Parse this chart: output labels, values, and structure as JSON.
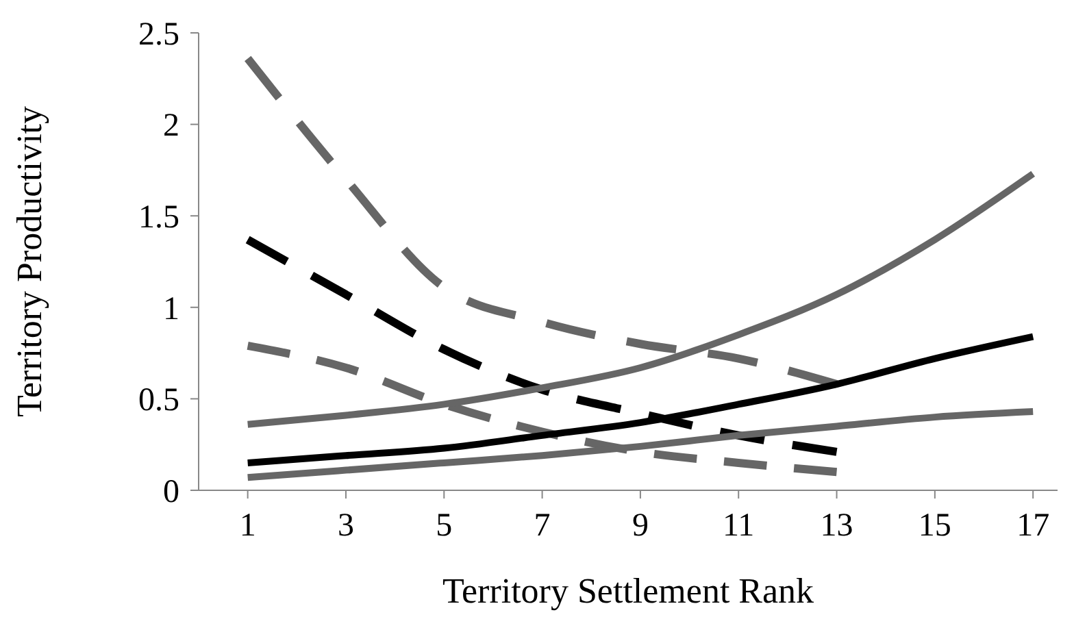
{
  "chart_data": {
    "type": "line",
    "xlabel": "Territory Settlement Rank",
    "ylabel": "Territory Productivity",
    "xlim": [
      0,
      17.5
    ],
    "xticks": [
      1,
      3,
      5,
      7,
      9,
      11,
      13,
      15,
      17
    ],
    "ylim": [
      0,
      2.5
    ],
    "yticks": [
      0,
      0.5,
      1,
      1.5,
      2,
      2.5
    ],
    "grid": false,
    "marker": "none",
    "series": [
      {
        "color": "#666666",
        "line_style": "dashed",
        "x": [
          1,
          3,
          5,
          7,
          9,
          11,
          13
        ],
        "values": [
          2.36,
          1.7,
          1.11,
          0.92,
          0.8,
          0.72,
          0.58
        ]
      },
      {
        "color": "#000000",
        "line_style": "dashed",
        "x": [
          1,
          3,
          5,
          7,
          9,
          11,
          13
        ],
        "values": [
          1.37,
          1.07,
          0.77,
          0.55,
          0.42,
          0.3,
          0.21
        ]
      },
      {
        "color": "#666666",
        "line_style": "dashed",
        "x": [
          1,
          3,
          5,
          7,
          9,
          11,
          13
        ],
        "values": [
          0.79,
          0.67,
          0.47,
          0.32,
          0.21,
          0.15,
          0.1
        ]
      },
      {
        "color": "#666666",
        "line_style": "solid",
        "x": [
          1,
          3,
          5,
          7,
          9,
          11,
          13,
          15,
          17
        ],
        "values": [
          0.36,
          0.41,
          0.47,
          0.56,
          0.67,
          0.85,
          1.07,
          1.37,
          1.73
        ]
      },
      {
        "color": "#000000",
        "line_style": "solid",
        "x": [
          1,
          3,
          5,
          7,
          9,
          11,
          13,
          15,
          17
        ],
        "values": [
          0.15,
          0.19,
          0.23,
          0.3,
          0.37,
          0.47,
          0.58,
          0.72,
          0.84
        ]
      },
      {
        "color": "#666666",
        "line_style": "solid",
        "x": [
          1,
          3,
          5,
          7,
          9,
          11,
          13,
          15,
          17
        ],
        "values": [
          0.07,
          0.11,
          0.15,
          0.19,
          0.24,
          0.3,
          0.35,
          0.4,
          0.43
        ]
      }
    ]
  }
}
